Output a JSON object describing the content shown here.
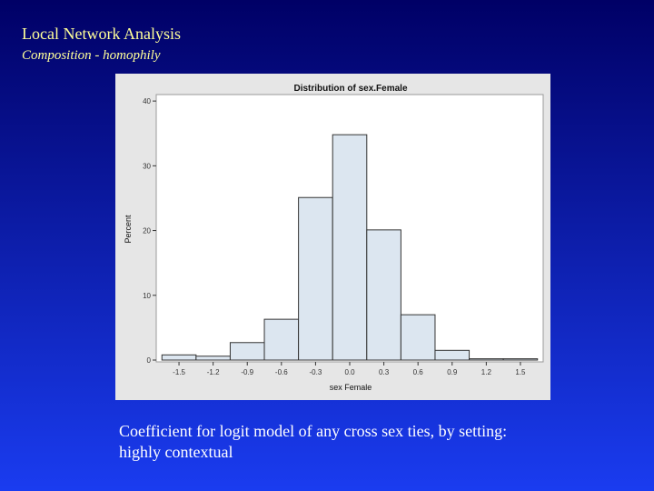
{
  "slide": {
    "title": "Local Network Analysis",
    "subtitle": "Composition - homophily",
    "caption": [
      "Coefficient for logit model of any cross sex ties, by setting:",
      "highly contextual"
    ]
  },
  "chart_data": {
    "type": "histogram",
    "title": "Distribution of sex.Female",
    "x_label": "sex Female",
    "y_label": "Percent",
    "bins": [
      -1.65,
      -1.35,
      -1.05,
      -0.75,
      -0.45,
      -0.15,
      0.15,
      0.45,
      0.75,
      1.05,
      1.35,
      1.65
    ],
    "values": [
      0.8,
      0.6,
      2.7,
      6.3,
      25.1,
      34.8,
      20.1,
      7.0,
      1.5,
      0.2,
      0.2
    ],
    "color": "#dce6f0",
    "xlim": [
      -1.7,
      1.7
    ],
    "xticks": [
      -1.5,
      -1.2,
      -0.9,
      -0.6,
      -0.3,
      {
        "value": 0,
        "label": "0.0"
      },
      0.3,
      0.6,
      0.9,
      1.2,
      1.5
    ],
    "ylim": [
      0,
      41
    ],
    "yticks": [
      0,
      10,
      20,
      30,
      40
    ]
  }
}
